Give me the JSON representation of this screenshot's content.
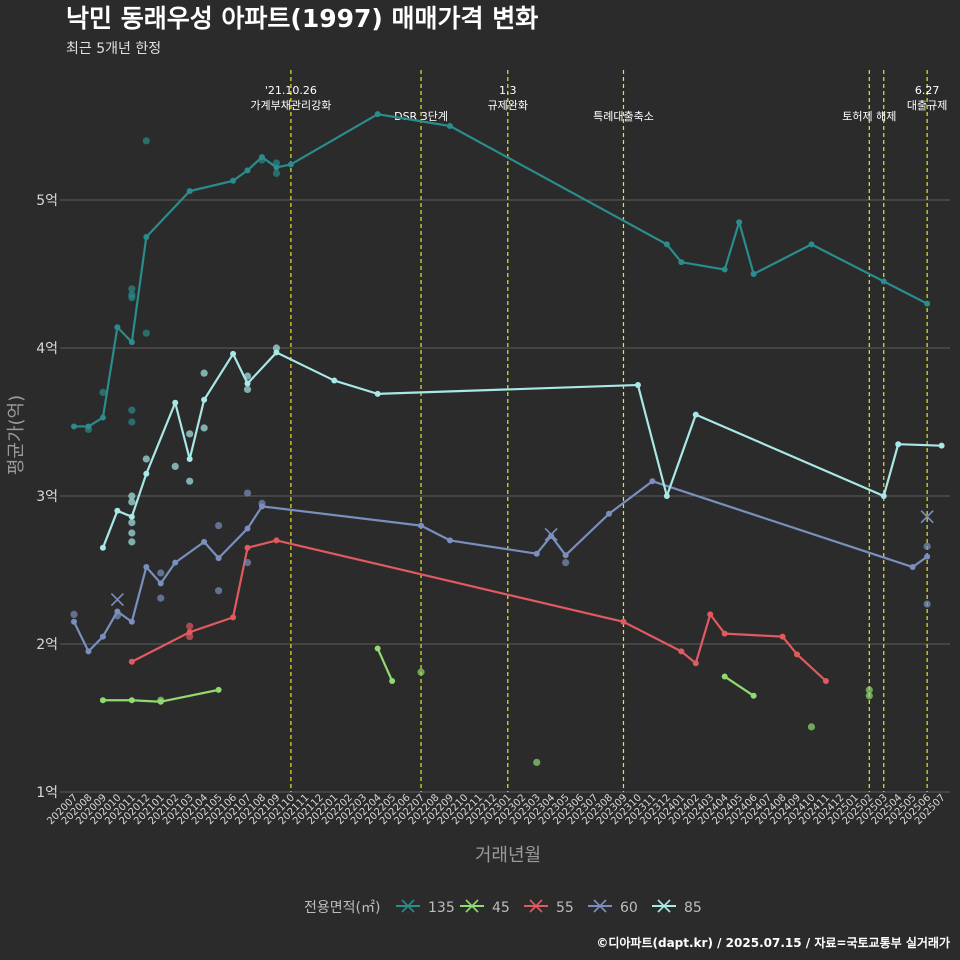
{
  "header": {
    "title": "낙민 동래우성 아파트(1997) 매매가격 변화",
    "subtitle": "최근 5개년 한정"
  },
  "caption": "©디아파트(dapt.kr) / 2025.07.15 / 자료=국토교통부 실거래가",
  "colors": {
    "background": "#2b2b2b",
    "grid": "#5c5c5c",
    "event_line": "#e6e62e",
    "s135": "#2a8c8c",
    "s45": "#8fdb70",
    "s55": "#e05a5f",
    "s60": "#7a8fbf",
    "s85": "#a8e8e6"
  },
  "chart_data": {
    "type": "line",
    "title": "낙민 동래우성 아파트(1997) 매매가격 변화",
    "subtitle": "최근 5개년 한정",
    "xlabel": "거래년월",
    "ylabel": "평균가(억)",
    "ylim": [
      1,
      5.8
    ],
    "yticks": [
      1,
      2,
      3,
      4,
      5
    ],
    "ytick_labels": [
      "1억",
      "2억",
      "3억",
      "4억",
      "5억"
    ],
    "x_categories": [
      "202007",
      "202008",
      "202009",
      "202010",
      "202011",
      "202012",
      "202101",
      "202102",
      "202103",
      "202104",
      "202105",
      "202106",
      "202107",
      "202108",
      "202109",
      "202110",
      "202111",
      "202112",
      "202201",
      "202202",
      "202203",
      "202204",
      "202205",
      "202206",
      "202207",
      "202208",
      "202209",
      "202210",
      "202211",
      "202212",
      "202301",
      "202302",
      "202303",
      "202304",
      "202305",
      "202306",
      "202307",
      "202308",
      "202309",
      "202310",
      "202311",
      "202312",
      "202401",
      "202402",
      "202403",
      "202404",
      "202405",
      "202406",
      "202407",
      "202408",
      "202409",
      "202410",
      "202411",
      "202412",
      "202501",
      "202502",
      "202503",
      "202504",
      "202505",
      "202506",
      "202507"
    ],
    "legend_title": "전용면적(㎡)",
    "legend_position": "bottom",
    "grid": true,
    "events": [
      {
        "x": "202110",
        "label": "'21.10.26\n가계부채관리강화"
      },
      {
        "x": "202207",
        "label": "DSR 3단계"
      },
      {
        "x": "202301",
        "label": "1.3\n규제완화"
      },
      {
        "x": "202309",
        "label": "특례대출축소"
      },
      {
        "x": "202502",
        "label": "토허제 해제"
      },
      {
        "x": "202503",
        "label": ""
      },
      {
        "x": "202506",
        "label": "6.27\n대출규제"
      }
    ],
    "series": [
      {
        "name": "135",
        "key": "s135",
        "line": [
          [
            "202007",
            3.47
          ],
          [
            "202008",
            3.47
          ],
          [
            "202009",
            3.53
          ],
          [
            "202010",
            4.14
          ],
          [
            "202011",
            4.04
          ],
          [
            "202012",
            4.75
          ],
          [
            "202103",
            5.06
          ],
          [
            "202106",
            5.13
          ],
          [
            "202107",
            5.2
          ],
          [
            "202108",
            5.29
          ],
          [
            "202109",
            5.22
          ],
          [
            "202110",
            5.24
          ],
          [
            "202204",
            5.58
          ],
          [
            "202209",
            5.5
          ],
          [
            "202312",
            4.7
          ],
          [
            "202401",
            4.58
          ],
          [
            "202404",
            4.53
          ],
          [
            "202405",
            4.85
          ],
          [
            "202406",
            4.5
          ],
          [
            "202410",
            4.7
          ],
          [
            "202503",
            4.45
          ],
          [
            "202506",
            4.3
          ]
        ],
        "points": [
          [
            "202008",
            3.45
          ],
          [
            "202009",
            3.7
          ],
          [
            "202011",
            4.4
          ],
          [
            "202011",
            4.36
          ],
          [
            "202011",
            4.34
          ],
          [
            "202011",
            3.58
          ],
          [
            "202011",
            3.5
          ],
          [
            "202012",
            5.4
          ],
          [
            "202012",
            4.1
          ],
          [
            "202108",
            5.27
          ],
          [
            "202109",
            5.18
          ],
          [
            "202109",
            5.25
          ]
        ],
        "crosses": []
      },
      {
        "name": "45",
        "key": "s45",
        "line": [
          [
            "202009",
            1.62
          ],
          [
            "202011",
            1.62
          ],
          [
            "202101",
            1.61
          ],
          [
            "202105",
            1.69
          ]
        ],
        "lines_extra": [
          [
            [
              "202204",
              1.97
            ],
            [
              "202205",
              1.75
            ]
          ],
          [
            [
              "202404",
              1.78
            ],
            [
              "202406",
              1.65
            ]
          ]
        ],
        "points": [
          [
            "202101",
            1.62
          ],
          [
            "202207",
            1.81
          ],
          [
            "202303",
            1.2
          ],
          [
            "202410",
            1.44
          ],
          [
            "202502",
            1.69
          ],
          [
            "202502",
            1.65
          ]
        ],
        "crosses": []
      },
      {
        "name": "55",
        "key": "s55",
        "line": [
          [
            "202011",
            1.88
          ],
          [
            "202103",
            2.08
          ],
          [
            "202106",
            2.18
          ],
          [
            "202107",
            2.65
          ],
          [
            "202109",
            2.7
          ],
          [
            "202309",
            2.15
          ],
          [
            "202401",
            1.95
          ],
          [
            "202402",
            1.87
          ],
          [
            "202403",
            2.2
          ],
          [
            "202404",
            2.07
          ],
          [
            "202408",
            2.05
          ],
          [
            "202409",
            1.93
          ],
          [
            "202411",
            1.75
          ]
        ],
        "points": [
          [
            "202103",
            2.12
          ],
          [
            "202103",
            2.05
          ]
        ],
        "crosses": []
      },
      {
        "name": "60",
        "key": "s60",
        "line": [
          [
            "202007",
            2.15
          ],
          [
            "202008",
            1.95
          ],
          [
            "202009",
            2.05
          ],
          [
            "202010",
            2.22
          ],
          [
            "202011",
            2.15
          ],
          [
            "202012",
            2.52
          ],
          [
            "202101",
            2.41
          ],
          [
            "202102",
            2.55
          ],
          [
            "202104",
            2.69
          ],
          [
            "202105",
            2.58
          ],
          [
            "202107",
            2.78
          ],
          [
            "202108",
            2.93
          ],
          [
            "202207",
            2.8
          ],
          [
            "202209",
            2.7
          ],
          [
            "202303",
            2.61
          ],
          [
            "202304",
            2.73
          ],
          [
            "202305",
            2.6
          ],
          [
            "202308",
            2.88
          ],
          [
            "202311",
            3.1
          ],
          [
            "202505",
            2.52
          ],
          [
            "202506",
            2.59
          ]
        ],
        "points": [
          [
            "202007",
            2.2
          ],
          [
            "202010",
            2.19
          ],
          [
            "202101",
            2.31
          ],
          [
            "202101",
            2.48
          ],
          [
            "202105",
            2.8
          ],
          [
            "202105",
            2.36
          ],
          [
            "202107",
            3.02
          ],
          [
            "202107",
            2.55
          ],
          [
            "202108",
            2.95
          ],
          [
            "202305",
            2.55
          ],
          [
            "202506",
            2.66
          ],
          [
            "202506",
            2.27
          ]
        ],
        "crosses": [
          [
            "202010",
            2.3
          ],
          [
            "202304",
            2.74
          ],
          [
            "202506",
            2.86
          ]
        ]
      },
      {
        "name": "85",
        "key": "s85",
        "line": [
          [
            "202009",
            2.65
          ],
          [
            "202010",
            2.9
          ],
          [
            "202011",
            2.86
          ],
          [
            "202012",
            3.15
          ],
          [
            "202102",
            3.63
          ],
          [
            "202103",
            3.25
          ],
          [
            "202104",
            3.65
          ],
          [
            "202106",
            3.96
          ],
          [
            "202107",
            3.76
          ],
          [
            "202109",
            3.97
          ],
          [
            "202201",
            3.78
          ],
          [
            "202204",
            3.69
          ],
          [
            "202310",
            3.75
          ],
          [
            "202312",
            3.0
          ],
          [
            "202402",
            3.55
          ],
          [
            "202503",
            3.0
          ],
          [
            "202504",
            3.35
          ],
          [
            "202507",
            3.34
          ]
        ],
        "points": [
          [
            "202011",
            2.69
          ],
          [
            "202011",
            2.75
          ],
          [
            "202011",
            2.82
          ],
          [
            "202011",
            2.96
          ],
          [
            "202011",
            3.0
          ],
          [
            "202012",
            3.25
          ],
          [
            "202102",
            3.2
          ],
          [
            "202103",
            3.42
          ],
          [
            "202103",
            3.1
          ],
          [
            "202104",
            3.83
          ],
          [
            "202104",
            3.46
          ],
          [
            "202107",
            3.81
          ],
          [
            "202107",
            3.72
          ],
          [
            "202109",
            4.0
          ]
        ],
        "crosses": []
      }
    ]
  }
}
